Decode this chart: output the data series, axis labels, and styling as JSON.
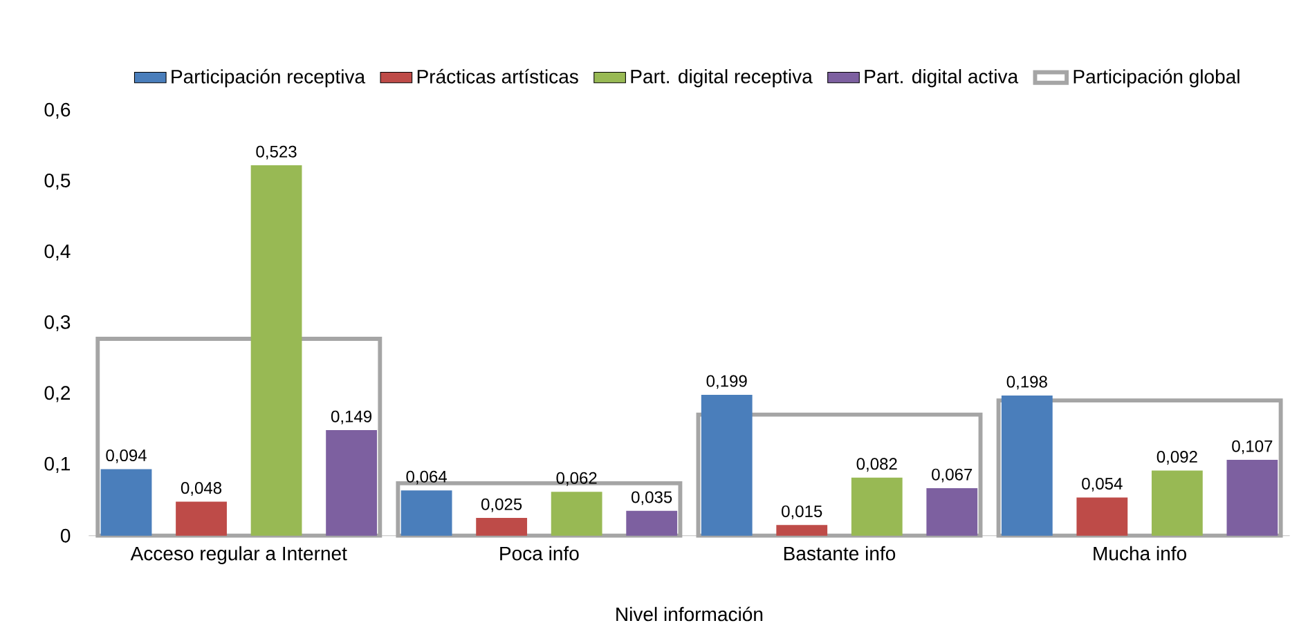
{
  "chart_data": {
    "type": "bar",
    "xlabel": "Nivel información",
    "categories": [
      "Acceso regular a Internet",
      "Poca info",
      "Bastante info",
      "Mucha info"
    ],
    "series": [
      {
        "name": "Participación receptiva",
        "color": "#4a7ebb",
        "values": [
          0.094,
          0.064,
          0.199,
          0.198
        ],
        "value_labels": [
          "0,094",
          "0,064",
          "0,199",
          "0,198"
        ]
      },
      {
        "name": "Prácticas artísticas",
        "color": "#be4b48",
        "values": [
          0.048,
          0.025,
          0.015,
          0.054
        ],
        "value_labels": [
          "0,048",
          "0,025",
          "0,015",
          "0,054"
        ]
      },
      {
        "name": "Part. digital receptiva",
        "color": "#98b954",
        "values": [
          0.523,
          0.062,
          0.082,
          0.092
        ],
        "value_labels": [
          "0,523",
          "0,062",
          "0,082",
          "0,092"
        ]
      },
      {
        "name": "Part. digital activa",
        "color": "#7d60a0",
        "values": [
          0.149,
          0.035,
          0.067,
          0.107
        ],
        "value_labels": [
          "0,149",
          "0,035",
          "0,067",
          "0,107"
        ]
      },
      {
        "name": "Participación global",
        "color": "#a5a5a5",
        "values": [
          0.278,
          0.074,
          0.171,
          0.191
        ]
      }
    ],
    "ylim": [
      0,
      0.6
    ],
    "yticks": [
      0,
      {
        "value": 0.1,
        "label": "0,1"
      },
      {
        "value": 0.2,
        "label": "0,2"
      },
      {
        "value": 0.3,
        "label": "0,3"
      },
      {
        "value": 0.4,
        "label": "0,4"
      },
      {
        "value": 0.5,
        "label": "0,5"
      },
      {
        "value": 0.6,
        "label": "0,6"
      }
    ],
    "legend": "top"
  }
}
